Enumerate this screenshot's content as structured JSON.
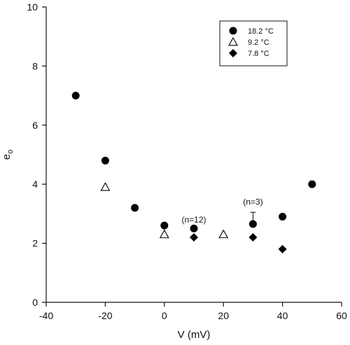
{
  "chart_data": {
    "type": "scatter",
    "xlabel": "V (mV)",
    "ylabel": "e",
    "ylabel_subscript": "o",
    "xlim": [
      -40,
      60
    ],
    "ylim": [
      0,
      10
    ],
    "xticks": [
      -40,
      -20,
      0,
      20,
      40,
      60
    ],
    "yticks": [
      0,
      2,
      4,
      6,
      8,
      10
    ],
    "grid": false,
    "legend_position": "top-right",
    "series": [
      {
        "name": "18.2 °C",
        "marker": "circle",
        "color": "#000000",
        "points": [
          {
            "x": -30,
            "y": 7.0
          },
          {
            "x": -20,
            "y": 4.8
          },
          {
            "x": -10,
            "y": 3.2
          },
          {
            "x": 0,
            "y": 2.6
          },
          {
            "x": 10,
            "y": 2.5
          },
          {
            "x": 30,
            "y": 2.65
          },
          {
            "x": 40,
            "y": 2.9
          },
          {
            "x": 50,
            "y": 4.0
          }
        ]
      },
      {
        "name": "9.2 °C",
        "marker": "triangle-open",
        "color": "#000000",
        "points": [
          {
            "x": -20,
            "y": 3.9
          },
          {
            "x": 0,
            "y": 2.3
          },
          {
            "x": 20,
            "y": 2.3
          }
        ]
      },
      {
        "name": "7.8 °C",
        "marker": "diamond",
        "color": "#000000",
        "points": [
          {
            "x": 10,
            "y": 2.2
          },
          {
            "x": 30,
            "y": 2.2
          },
          {
            "x": 40,
            "y": 1.8
          }
        ]
      }
    ],
    "error_bars": [
      {
        "x": 30,
        "y": 2.65,
        "upper": 3.05
      }
    ],
    "annotations": [
      {
        "text": "(n=12)",
        "x": 10,
        "y": 2.7
      },
      {
        "text": "(n=3)",
        "x": 30,
        "y": 3.3
      }
    ]
  }
}
